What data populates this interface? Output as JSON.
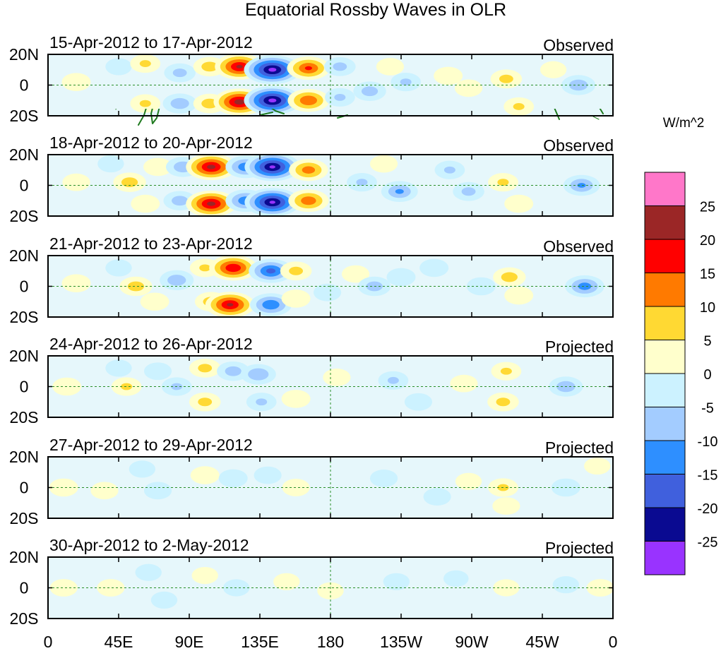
{
  "chart_data": {
    "type": "heatmap",
    "title": "Equatorial Rossby Waves in OLR",
    "units": "W/m^2",
    "x_ticks": [
      "0",
      "45E",
      "90E",
      "135E",
      "180",
      "135W",
      "90W",
      "45W",
      "0"
    ],
    "x_tick_lons": [
      0,
      45,
      90,
      135,
      180,
      225,
      270,
      315,
      360
    ],
    "y_ticks": [
      "20N",
      "0",
      "20S"
    ],
    "y_tick_lats": [
      20,
      0,
      -20
    ],
    "xlim": [
      0,
      360
    ],
    "ylim": [
      -20,
      20
    ],
    "colorbar": {
      "labels": [
        "25",
        "20",
        "15",
        "10",
        "5",
        "0",
        "-5",
        "-10",
        "-15",
        "-20",
        "-25"
      ],
      "colors": [
        "#ff77c9",
        "#9b2626",
        "#ff0000",
        "#ff7a00",
        "#ffd933",
        "#ffffcc",
        "#ccf2ff",
        "#a3ccff",
        "#2e8fff",
        "#4060dd",
        "#0a0a91",
        "#9933ff"
      ]
    },
    "panels": [
      {
        "date_range": "15-Apr-2012 to 17-Apr-2012",
        "status": "Observed",
        "anomalies": [
          {
            "lon": 18,
            "lat": 2,
            "value": 5
          },
          {
            "lon": 45,
            "lat": 12,
            "value": -3
          },
          {
            "lon": 62,
            "lat": 14,
            "value": 6
          },
          {
            "lon": 62,
            "lat": -12,
            "value": 6
          },
          {
            "lon": 84,
            "lat": 8,
            "value": -7
          },
          {
            "lon": 84,
            "lat": -12,
            "value": -9
          },
          {
            "lon": 103,
            "lat": 12,
            "value": 8
          },
          {
            "lon": 103,
            "lat": -12,
            "value": 8
          },
          {
            "lon": 122,
            "lat": 12,
            "value": 21
          },
          {
            "lon": 122,
            "lat": -11,
            "value": 23
          },
          {
            "lon": 143,
            "lat": 10,
            "value": -27
          },
          {
            "lon": 143,
            "lat": -10,
            "value": -27
          },
          {
            "lon": 166,
            "lat": 11,
            "value": 16
          },
          {
            "lon": 166,
            "lat": -10,
            "value": 15
          },
          {
            "lon": 186,
            "lat": 12,
            "value": -7
          },
          {
            "lon": 186,
            "lat": -8,
            "value": -6
          },
          {
            "lon": 205,
            "lat": -4,
            "value": -8
          },
          {
            "lon": 218,
            "lat": 12,
            "value": 4
          },
          {
            "lon": 228,
            "lat": 2,
            "value": -6
          },
          {
            "lon": 255,
            "lat": 6,
            "value": 5
          },
          {
            "lon": 268,
            "lat": -2,
            "value": 4
          },
          {
            "lon": 292,
            "lat": 4,
            "value": 7
          },
          {
            "lon": 300,
            "lat": -14,
            "value": 6
          },
          {
            "lon": 322,
            "lat": 10,
            "value": 3
          },
          {
            "lon": 338,
            "lat": 0,
            "value": -9
          }
        ]
      },
      {
        "date_range": "18-Apr-2012 to 20-Apr-2012",
        "status": "Observed",
        "anomalies": [
          {
            "lon": 18,
            "lat": 2,
            "value": 4
          },
          {
            "lon": 40,
            "lat": 14,
            "value": -3
          },
          {
            "lon": 52,
            "lat": 2,
            "value": 8
          },
          {
            "lon": 62,
            "lat": -12,
            "value": 5
          },
          {
            "lon": 70,
            "lat": 12,
            "value": 5
          },
          {
            "lon": 86,
            "lat": 12,
            "value": -9
          },
          {
            "lon": 84,
            "lat": -10,
            "value": -8
          },
          {
            "lon": 104,
            "lat": 12,
            "value": 22
          },
          {
            "lon": 104,
            "lat": -12,
            "value": 22
          },
          {
            "lon": 126,
            "lat": 12,
            "value": -14
          },
          {
            "lon": 126,
            "lat": -10,
            "value": -14
          },
          {
            "lon": 143,
            "lat": 12,
            "value": -26
          },
          {
            "lon": 143,
            "lat": -11,
            "value": -26
          },
          {
            "lon": 166,
            "lat": 10,
            "value": 13
          },
          {
            "lon": 166,
            "lat": -10,
            "value": 14
          },
          {
            "lon": 200,
            "lat": 2,
            "value": -6
          },
          {
            "lon": 214,
            "lat": 14,
            "value": 4
          },
          {
            "lon": 224,
            "lat": -4,
            "value": -11
          },
          {
            "lon": 256,
            "lat": 10,
            "value": -6
          },
          {
            "lon": 268,
            "lat": -4,
            "value": -7
          },
          {
            "lon": 290,
            "lat": 2,
            "value": 6
          },
          {
            "lon": 300,
            "lat": -12,
            "value": 5
          },
          {
            "lon": 340,
            "lat": 0,
            "value": -11
          }
        ]
      },
      {
        "date_range": "21-Apr-2012 to 23-Apr-2012",
        "status": "Observed",
        "anomalies": [
          {
            "lon": 18,
            "lat": 2,
            "value": 5
          },
          {
            "lon": 45,
            "lat": 12,
            "value": -3
          },
          {
            "lon": 56,
            "lat": 0,
            "value": 8
          },
          {
            "lon": 68,
            "lat": -10,
            "value": 5
          },
          {
            "lon": 82,
            "lat": 4,
            "value": -9
          },
          {
            "lon": 100,
            "lat": 12,
            "value": 6
          },
          {
            "lon": 104,
            "lat": -10,
            "value": 8
          },
          {
            "lon": 118,
            "lat": 12,
            "value": 20
          },
          {
            "lon": 116,
            "lat": -12,
            "value": 21
          },
          {
            "lon": 142,
            "lat": 10,
            "value": -17
          },
          {
            "lon": 142,
            "lat": -12,
            "value": -15
          },
          {
            "lon": 158,
            "lat": 10,
            "value": 7
          },
          {
            "lon": 158,
            "lat": -8,
            "value": 5
          },
          {
            "lon": 178,
            "lat": -4,
            "value": -4
          },
          {
            "lon": 196,
            "lat": 8,
            "value": 4
          },
          {
            "lon": 208,
            "lat": 0,
            "value": -8
          },
          {
            "lon": 225,
            "lat": 6,
            "value": -5
          },
          {
            "lon": 246,
            "lat": 12,
            "value": -5
          },
          {
            "lon": 276,
            "lat": 0,
            "value": -5
          },
          {
            "lon": 294,
            "lat": 6,
            "value": 8
          },
          {
            "lon": 300,
            "lat": -6,
            "value": 5
          },
          {
            "lon": 342,
            "lat": 0,
            "value": -13
          }
        ]
      },
      {
        "date_range": "24-Apr-2012 to 26-Apr-2012",
        "status": "Projected",
        "anomalies": [
          {
            "lon": 12,
            "lat": 0,
            "value": 5
          },
          {
            "lon": 45,
            "lat": 12,
            "value": -3
          },
          {
            "lon": 50,
            "lat": 0,
            "value": 6
          },
          {
            "lon": 70,
            "lat": 10,
            "value": -4
          },
          {
            "lon": 82,
            "lat": 0,
            "value": -6
          },
          {
            "lon": 100,
            "lat": 12,
            "value": 7
          },
          {
            "lon": 100,
            "lat": -10,
            "value": 7
          },
          {
            "lon": 118,
            "lat": 10,
            "value": -8
          },
          {
            "lon": 134,
            "lat": 8,
            "value": -10
          },
          {
            "lon": 136,
            "lat": -10,
            "value": -6
          },
          {
            "lon": 158,
            "lat": -8,
            "value": 5
          },
          {
            "lon": 184,
            "lat": 6,
            "value": 4
          },
          {
            "lon": 220,
            "lat": 4,
            "value": -6
          },
          {
            "lon": 236,
            "lat": -10,
            "value": -4
          },
          {
            "lon": 265,
            "lat": 2,
            "value": 4
          },
          {
            "lon": 292,
            "lat": 10,
            "value": 6
          },
          {
            "lon": 290,
            "lat": -10,
            "value": 7
          },
          {
            "lon": 330,
            "lat": 0,
            "value": -9
          }
        ]
      },
      {
        "date_range": "27-Apr-2012 to 29-Apr-2012",
        "status": "Projected",
        "anomalies": [
          {
            "lon": 10,
            "lat": 0,
            "value": 5
          },
          {
            "lon": 36,
            "lat": -2,
            "value": 4
          },
          {
            "lon": 60,
            "lat": 12,
            "value": -3
          },
          {
            "lon": 70,
            "lat": -2,
            "value": -4
          },
          {
            "lon": 100,
            "lat": 8,
            "value": 5
          },
          {
            "lon": 118,
            "lat": 6,
            "value": -5
          },
          {
            "lon": 140,
            "lat": 8,
            "value": -4
          },
          {
            "lon": 158,
            "lat": 0,
            "value": 4
          },
          {
            "lon": 214,
            "lat": 6,
            "value": -4
          },
          {
            "lon": 248,
            "lat": -6,
            "value": -4
          },
          {
            "lon": 268,
            "lat": 4,
            "value": 3
          },
          {
            "lon": 290,
            "lat": 0,
            "value": 6
          },
          {
            "lon": 292,
            "lat": -12,
            "value": 4
          },
          {
            "lon": 330,
            "lat": 0,
            "value": -5
          },
          {
            "lon": 350,
            "lat": 14,
            "value": 3
          }
        ]
      },
      {
        "date_range": "30-Apr-2012 to 2-May-2012",
        "status": "Projected",
        "anomalies": [
          {
            "lon": 10,
            "lat": 0,
            "value": 4
          },
          {
            "lon": 40,
            "lat": 0,
            "value": 4
          },
          {
            "lon": 64,
            "lat": 10,
            "value": -3
          },
          {
            "lon": 74,
            "lat": -8,
            "value": -3
          },
          {
            "lon": 100,
            "lat": 8,
            "value": 3
          },
          {
            "lon": 120,
            "lat": 0,
            "value": -3
          },
          {
            "lon": 152,
            "lat": 4,
            "value": 3
          },
          {
            "lon": 180,
            "lat": -2,
            "value": 3
          },
          {
            "lon": 222,
            "lat": 4,
            "value": -3
          },
          {
            "lon": 260,
            "lat": 6,
            "value": -2
          },
          {
            "lon": 292,
            "lat": 0,
            "value": 3
          },
          {
            "lon": 330,
            "lat": 2,
            "value": -3
          },
          {
            "lon": 352,
            "lat": 0,
            "value": 4
          }
        ]
      }
    ]
  }
}
